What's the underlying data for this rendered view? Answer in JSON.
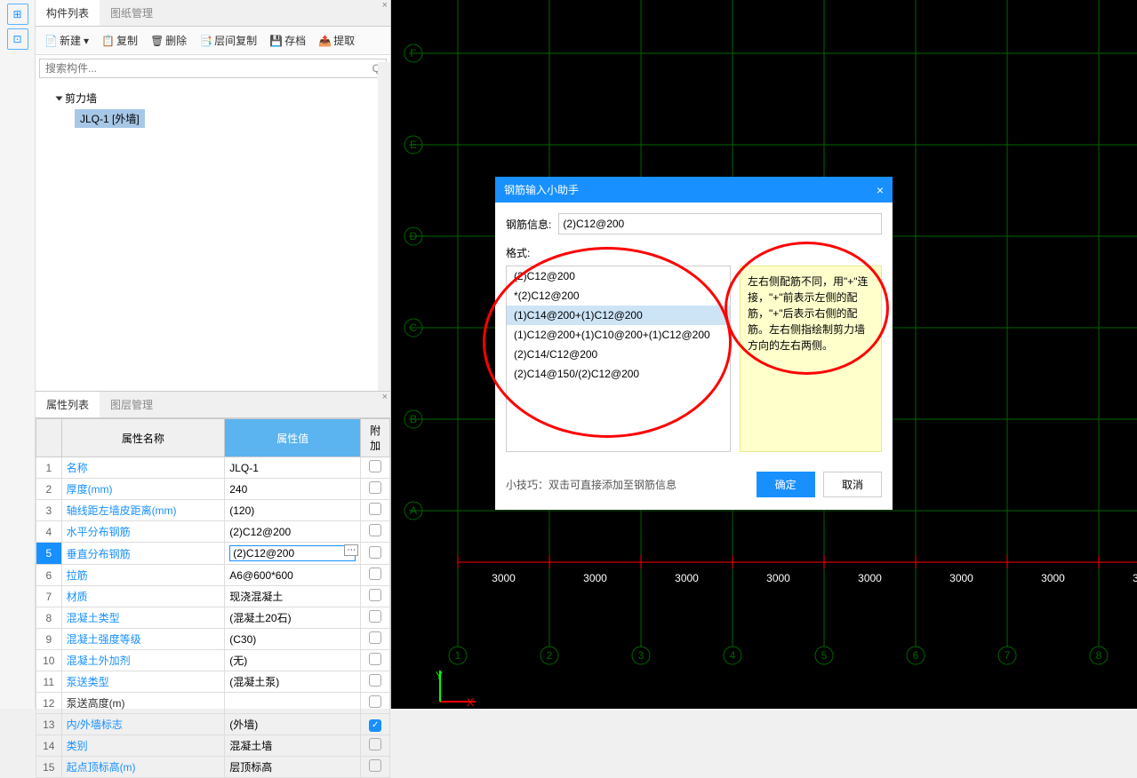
{
  "panels": {
    "component_tab": "构件列表",
    "drawing_tab": "图纸管理",
    "property_tab": "属性列表",
    "layer_tab": "图层管理"
  },
  "toolbar": {
    "new": "新建",
    "copy": "复制",
    "delete": "删除",
    "floor_copy": "层间复制",
    "archive": "存档",
    "extract": "提取"
  },
  "search": {
    "placeholder": "搜索构件..."
  },
  "tree": {
    "root": "剪力墙",
    "child": "JLQ-1 [外墙]"
  },
  "props_header": {
    "name": "属性名称",
    "value": "属性值",
    "extra": "附加"
  },
  "props": [
    {
      "i": "1",
      "n": "名称",
      "v": "JLQ-1",
      "c": false,
      "link": true
    },
    {
      "i": "2",
      "n": "厚度(mm)",
      "v": "240",
      "c": false,
      "link": true
    },
    {
      "i": "3",
      "n": "轴线距左墙皮距离(mm)",
      "v": "(120)",
      "c": false,
      "link": true
    },
    {
      "i": "4",
      "n": "水平分布钢筋",
      "v": "(2)C12@200",
      "c": false,
      "link": true
    },
    {
      "i": "5",
      "n": "垂直分布钢筋",
      "v": "(2)C12@200",
      "c": false,
      "link": true,
      "sel": true,
      "edit": true
    },
    {
      "i": "6",
      "n": "拉筋",
      "v": "A6@600*600",
      "c": false,
      "link": true
    },
    {
      "i": "7",
      "n": "材质",
      "v": "现浇混凝土",
      "c": false,
      "link": true
    },
    {
      "i": "8",
      "n": "混凝土类型",
      "v": "(混凝土20石)",
      "c": false,
      "link": true
    },
    {
      "i": "9",
      "n": "混凝土强度等级",
      "v": "(C30)",
      "c": false,
      "link": true
    },
    {
      "i": "10",
      "n": "混凝土外加剂",
      "v": "(无)",
      "c": false,
      "link": true
    },
    {
      "i": "11",
      "n": "泵送类型",
      "v": "(混凝土泵)",
      "c": false,
      "link": true
    },
    {
      "i": "12",
      "n": "泵送高度(m)",
      "v": "",
      "c": false,
      "link": false
    },
    {
      "i": "13",
      "n": "内/外墙标志",
      "v": "(外墙)",
      "c": true,
      "link": true
    },
    {
      "i": "14",
      "n": "类别",
      "v": "混凝土墙",
      "c": false,
      "link": true
    },
    {
      "i": "15",
      "n": "起点顶标高(m)",
      "v": "层顶标高",
      "c": false,
      "link": true
    }
  ],
  "dialog": {
    "title": "钢筋输入小助手",
    "info_label": "钢筋信息:",
    "info_value": "(2)C12@200",
    "format_label": "格式:",
    "formats": [
      "(2)C12@200",
      "*(2)C12@200",
      "(1)C14@200+(1)C12@200",
      "(1)C12@200+(1)C10@200+(1)C12@200",
      "(2)C14/C12@200",
      "(2)C14@150/(2)C12@200"
    ],
    "selected_index": 2,
    "hint": "左右侧配筋不同，用\"+\"连接，\"+\"前表示左侧的配筋，\"+\"后表示右侧的配筋。左右侧指绘制剪力墙方向的左右两侧。",
    "tip": "小技巧：双击可直接添加至钢筋信息",
    "ok": "确定",
    "cancel": "取消"
  },
  "grid": {
    "rows": [
      "F",
      "E",
      "D",
      "C",
      "B",
      "A"
    ],
    "cols": [
      "1",
      "2",
      "3",
      "4",
      "5",
      "6",
      "7",
      "8"
    ],
    "dim": "3000"
  }
}
